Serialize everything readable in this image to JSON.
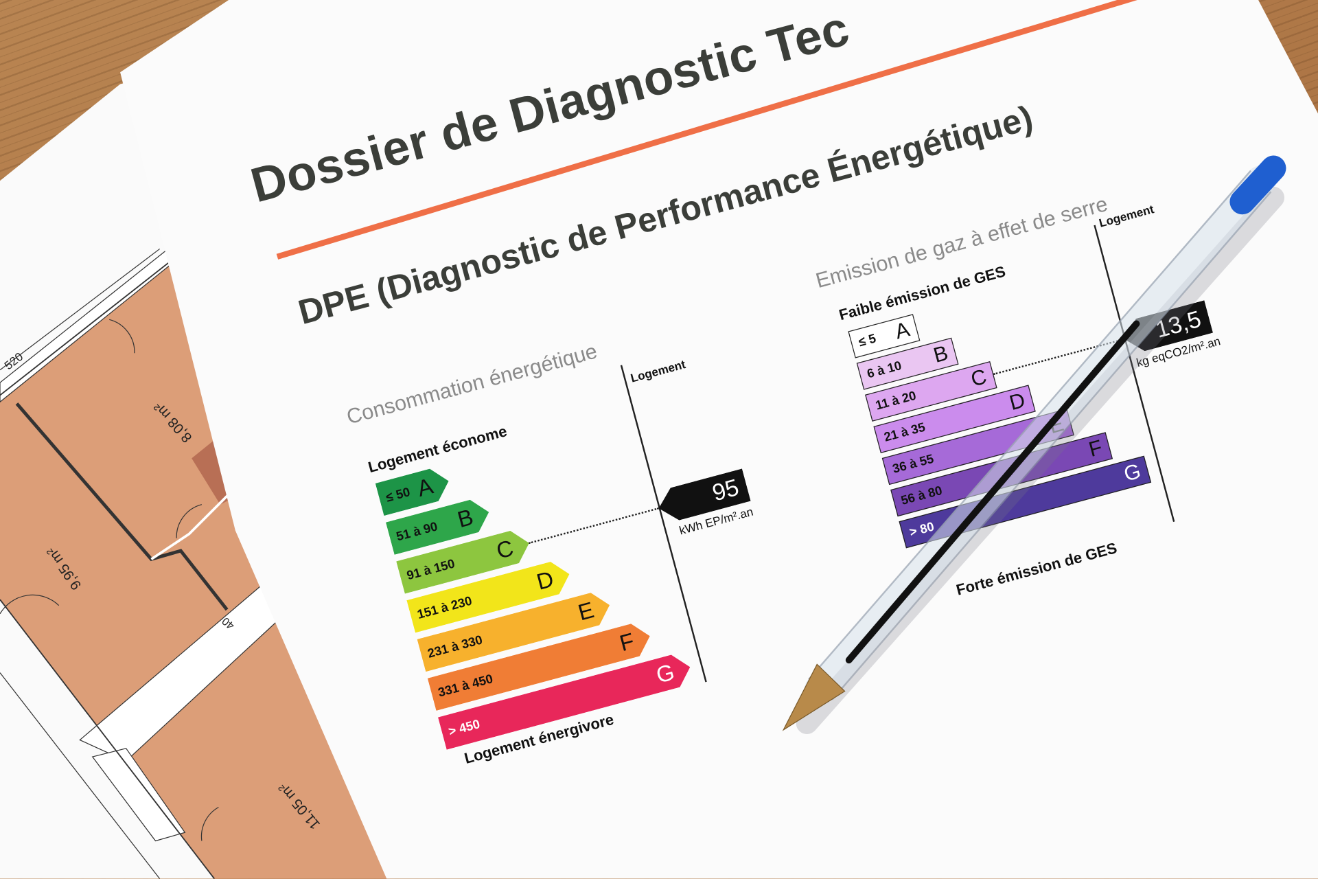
{
  "document": {
    "title": "Dossier de Diagnostic Tec",
    "subtitle": "DPE (Diagnostic de Performance Énergétique)",
    "accent_color": "#ef6f47"
  },
  "energy": {
    "heading": "Consommation énergétique",
    "top_label": "Logement économe",
    "bottom_label": "Logement énergivore",
    "column_label": "Logement",
    "value": "95",
    "unit": "kWh EP/m².an",
    "rating": "C",
    "classes": [
      {
        "letter": "A",
        "range": "≤ 50",
        "color": "#1d9447"
      },
      {
        "letter": "B",
        "range": "51 à 90",
        "color": "#2ea64a"
      },
      {
        "letter": "C",
        "range": "91 à 150",
        "color": "#8dc63f"
      },
      {
        "letter": "D",
        "range": "151 à 230",
        "color": "#f2e51a"
      },
      {
        "letter": "E",
        "range": "231 à 330",
        "color": "#f7b12d"
      },
      {
        "letter": "F",
        "range": "331 à 450",
        "color": "#f07d35"
      },
      {
        "letter": "G",
        "range": "> 450",
        "color": "#e8275a"
      }
    ]
  },
  "ges": {
    "heading": "Emission de gaz à effet de serre",
    "top_label": "Faible émission de GES",
    "bottom_label": "Forte émission de GES",
    "column_label": "Logement",
    "value": "13,5",
    "unit": "kg eqCO2/m².an",
    "rating": "C",
    "classes": [
      {
        "letter": "A",
        "range": "≤ 5",
        "color": "#ffffff"
      },
      {
        "letter": "B",
        "range": "6 à 10",
        "color": "#eac6f2"
      },
      {
        "letter": "C",
        "range": "11 à 20",
        "color": "#dda7f0"
      },
      {
        "letter": "D",
        "range": "21 à 35",
        "color": "#cb8ced"
      },
      {
        "letter": "E",
        "range": "36 à 55",
        "color": "#a66ad8"
      },
      {
        "letter": "F",
        "range": "56 à 80",
        "color": "#7a48b4"
      },
      {
        "letter": "G",
        "range": "> 80",
        "color": "#4e3a9c"
      }
    ]
  },
  "floor_plan": {
    "rooms": [
      "8,08 m²",
      "9,95 m²",
      "11,05 m²"
    ],
    "dimensions": [
      "520",
      "40"
    ]
  },
  "pen": {
    "cap_color": "#1f5fd0",
    "tip_color": "#b88a4a"
  }
}
